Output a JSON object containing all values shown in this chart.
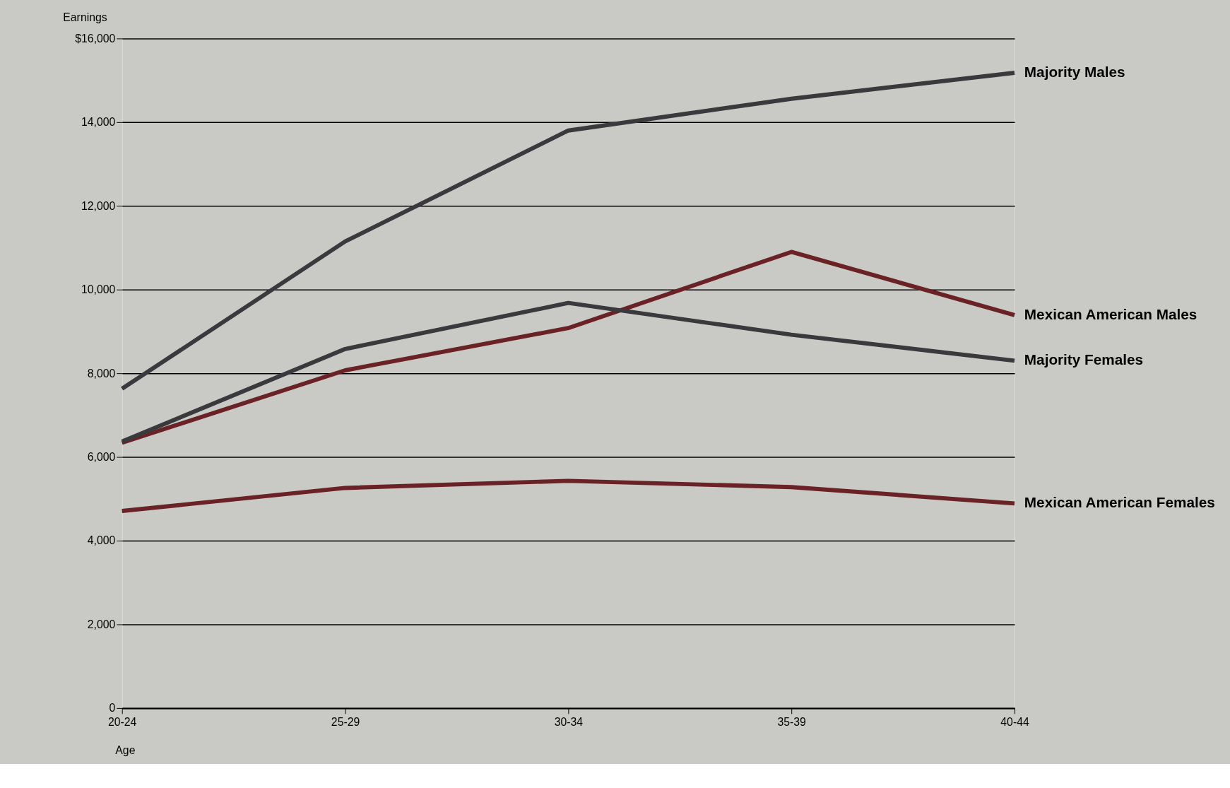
{
  "chart_data": {
    "type": "line",
    "xlabel": "Age",
    "ylabel": "Earnings",
    "categories": [
      "20-24",
      "25-29",
      "30-34",
      "35-39",
      "40-44"
    ],
    "series": [
      {
        "name": "Majority Males",
        "color": "#3a3a3e",
        "values": [
          7630,
          11150,
          13800,
          14560,
          15180
        ]
      },
      {
        "name": "Mexican American Males",
        "color": "#6b2226",
        "values": [
          6340,
          8070,
          9080,
          10900,
          9390
        ]
      },
      {
        "name": "Majority Females",
        "color": "#3a3a3e",
        "values": [
          6370,
          8580,
          9680,
          8920,
          8300
        ]
      },
      {
        "name": "Mexican American Females",
        "color": "#6b2226",
        "values": [
          4710,
          5260,
          5430,
          5280,
          4890
        ]
      }
    ],
    "ylim": [
      0,
      16000
    ],
    "yticks": [
      0,
      {
        "value": 2000,
        "label": "2,000"
      },
      {
        "value": 4000,
        "label": "4,000"
      },
      {
        "value": 6000,
        "label": "6,000"
      },
      {
        "value": 8000,
        "label": "8,000"
      },
      {
        "value": 10000,
        "label": "10,000"
      },
      {
        "value": 12000,
        "label": "12,000"
      },
      {
        "value": 14000,
        "label": "14,000"
      },
      {
        "value": 16000,
        "label": "$16,000"
      }
    ],
    "grid": "y",
    "line_style": "solid",
    "marker": "none"
  }
}
